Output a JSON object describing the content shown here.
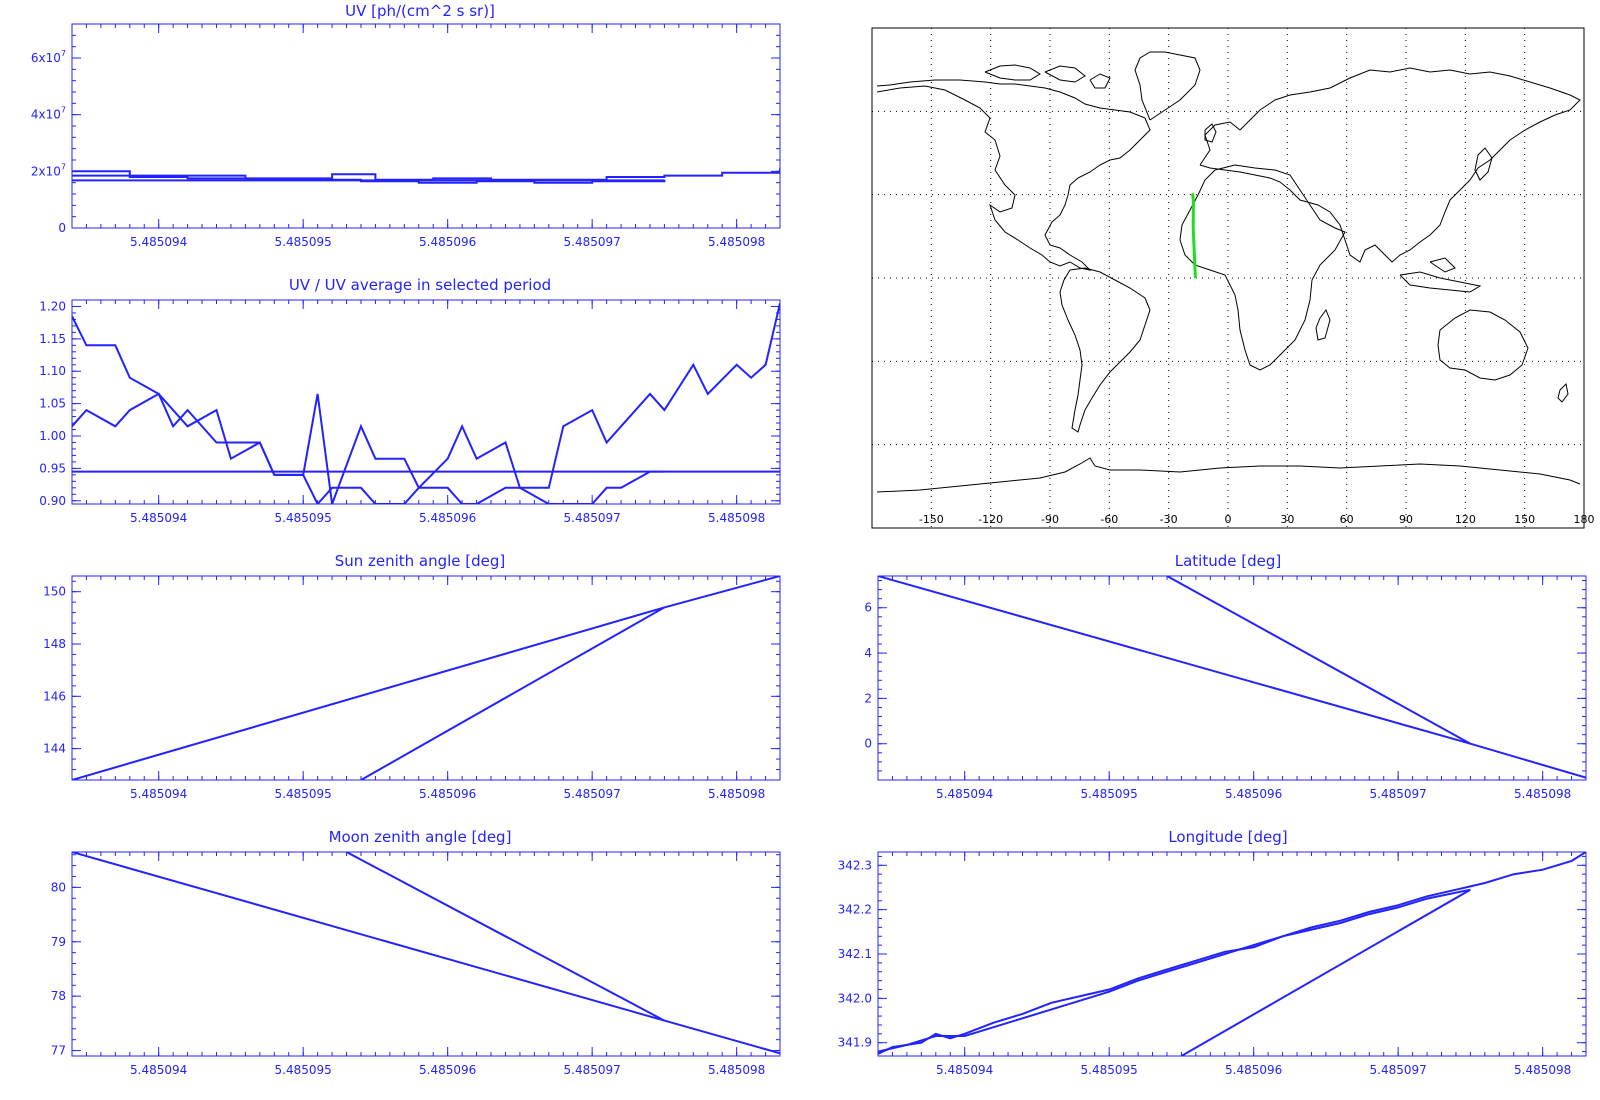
{
  "colors": {
    "plot": "#2323ff",
    "map_line": "#000000",
    "map_track": "#22dd22",
    "background": "#ffffff"
  },
  "chart_data": [
    {
      "id": "uv",
      "type": "line",
      "title": "UV [ph/(cm^2 s sr)]",
      "xlim": [
        5.4850934,
        5.4850983
      ],
      "ylim": [
        0,
        72000000
      ],
      "x_ticks": [
        "5.485094",
        "5.485095",
        "5.485096",
        "5.485097",
        "5.485098"
      ],
      "x_tick_values": [
        5.485094,
        5.485095,
        5.485096,
        5.485097,
        5.485098
      ],
      "y_tick_labels": [
        "0",
        "2x10^7",
        "4x10^7",
        "6x10^7"
      ],
      "y_tick_values": [
        0,
        20000000,
        40000000,
        60000000
      ],
      "series": [
        {
          "step": true,
          "x": [
            5.4850934,
            5.4850938,
            5.4850942,
            5.4850946,
            5.485095,
            5.4850952,
            5.4850955,
            5.4850959,
            5.4850963,
            5.4850967,
            5.4850971,
            5.4850975,
            5.4850979,
            5.4850983
          ],
          "y": [
            20000000,
            18500000,
            18500000,
            17500000,
            17500000,
            19000000,
            17000000,
            17500000,
            17000000,
            17000000,
            18000000,
            18500000,
            19500000,
            21000000
          ]
        },
        {
          "step": true,
          "x": [
            5.4850934,
            5.4850938,
            5.4850942,
            5.4850946,
            5.485095,
            5.4850954,
            5.4850958,
            5.4850962,
            5.4850966,
            5.485097,
            5.4850975
          ],
          "y": [
            18500000,
            18000000,
            17500000,
            17000000,
            17000000,
            16500000,
            16000000,
            16500000,
            16000000,
            16500000,
            17000000
          ]
        },
        {
          "step": false,
          "x": [
            5.4850934,
            5.4850975
          ],
          "y": [
            16800000,
            16800000
          ]
        }
      ]
    },
    {
      "id": "uv_ratio",
      "type": "line",
      "title": "UV / UV average in selected period",
      "xlim": [
        5.4850934,
        5.4850983
      ],
      "ylim": [
        0.895,
        1.21
      ],
      "x_ticks": [
        "5.485094",
        "5.485095",
        "5.485096",
        "5.485097",
        "5.485098"
      ],
      "x_tick_values": [
        5.485094,
        5.485095,
        5.485096,
        5.485097,
        5.485098
      ],
      "y_tick_labels": [
        "0.90",
        "0.95",
        "1.00",
        "1.05",
        "1.10",
        "1.15",
        "1.20"
      ],
      "y_tick_values": [
        0.9,
        0.95,
        1.0,
        1.05,
        1.1,
        1.15,
        1.2
      ],
      "series": [
        {
          "step": false,
          "x": [
            5.4850934,
            5.4850935,
            5.4850937,
            5.4850938,
            5.485094,
            5.4850941,
            5.4850942,
            5.4850944,
            5.4850945,
            5.4850947,
            5.4850948,
            5.485095,
            5.4850951,
            5.4850952,
            5.4850954,
            5.4850955,
            5.4850957,
            5.4850958,
            5.485096,
            5.4850961,
            5.4850962,
            5.4850964,
            5.4850965,
            5.4850967,
            5.4850968,
            5.485097,
            5.4850971,
            5.4850972,
            5.4850974,
            5.4850975,
            5.4850977,
            5.4850978,
            5.485098,
            5.4850981,
            5.4850982,
            5.4850983
          ],
          "y": [
            1.015,
            1.04,
            1.015,
            1.04,
            1.065,
            1.015,
            1.04,
            0.99,
            0.99,
            0.99,
            0.94,
            0.94,
            0.895,
            0.92,
            0.92,
            0.895,
            0.895,
            0.92,
            0.92,
            0.895,
            0.895,
            0.92,
            0.92,
            0.895,
            0.895,
            0.895,
            0.92,
            0.92,
            0.945,
            0.945,
            0.945,
            0.945,
            0.945,
            0.945,
            0.945,
            0.945
          ]
        },
        {
          "step": false,
          "x": [
            5.4850934,
            5.4850935,
            5.4850937,
            5.4850938,
            5.485094,
            5.4850941,
            5.4850942,
            5.4850944,
            5.4850945,
            5.4850947,
            5.4850948,
            5.485095,
            5.4850951,
            5.4850952,
            5.4850954,
            5.4850955,
            5.4850957,
            5.4850958,
            5.485096,
            5.4850961,
            5.4850962,
            5.4850964,
            5.4850965,
            5.4850967,
            5.4850968,
            5.485097,
            5.4850971,
            5.4850972,
            5.4850974,
            5.4850975,
            5.4850977,
            5.4850978,
            5.485098,
            5.4850981,
            5.4850982,
            5.4850983
          ],
          "y": [
            1.185,
            1.14,
            1.14,
            1.09,
            1.065,
            1.04,
            1.015,
            1.04,
            0.965,
            0.99,
            0.94,
            0.94,
            1.065,
            0.895,
            1.015,
            0.965,
            0.965,
            0.92,
            0.965,
            1.015,
            0.965,
            0.99,
            0.92,
            0.92,
            1.015,
            1.04,
            0.99,
            1.015,
            1.065,
            1.04,
            1.11,
            1.065,
            1.11,
            1.09,
            1.11,
            1.205
          ]
        },
        {
          "step": false,
          "x": [
            5.4850934,
            5.4850975
          ],
          "y": [
            0.945,
            0.945
          ]
        }
      ]
    },
    {
      "id": "sun_zenith",
      "type": "line",
      "title": "Sun zenith angle [deg]",
      "xlim": [
        5.4850934,
        5.4850983
      ],
      "ylim": [
        142.8,
        150.6
      ],
      "x_ticks": [
        "5.485094",
        "5.485095",
        "5.485096",
        "5.485097",
        "5.485098"
      ],
      "x_tick_values": [
        5.485094,
        5.485095,
        5.485096,
        5.485097,
        5.485098
      ],
      "y_tick_labels": [
        "144",
        "146",
        "148",
        "150"
      ],
      "y_tick_values": [
        144,
        146,
        148,
        150
      ],
      "series": [
        {
          "step": false,
          "x": [
            5.4850934,
            5.4850975,
            5.4850983
          ],
          "y": [
            142.8,
            149.4,
            150.6
          ]
        },
        {
          "step": false,
          "x": [
            5.4850954,
            5.4850975
          ],
          "y": [
            142.8,
            149.4
          ]
        }
      ]
    },
    {
      "id": "latitude",
      "type": "line",
      "title": "Latitude [deg]",
      "xlim": [
        5.4850934,
        5.4850983
      ],
      "ylim": [
        -1.6,
        7.4
      ],
      "x_ticks": [
        "5.485094",
        "5.485095",
        "5.485096",
        "5.485097",
        "5.485098"
      ],
      "x_tick_values": [
        5.485094,
        5.485095,
        5.485096,
        5.485097,
        5.485098
      ],
      "y_tick_labels": [
        "0",
        "2",
        "4",
        "6"
      ],
      "y_tick_values": [
        0,
        2,
        4,
        6
      ],
      "series": [
        {
          "step": false,
          "x": [
            5.4850934,
            5.4850975,
            5.4850983
          ],
          "y": [
            7.4,
            0.0,
            -1.5
          ]
        },
        {
          "step": false,
          "x": [
            5.4850954,
            5.4850975
          ],
          "y": [
            7.4,
            0.0
          ]
        }
      ]
    },
    {
      "id": "moon_zenith",
      "type": "line",
      "title": "Moon zenith angle [deg]",
      "xlim": [
        5.4850934,
        5.4850983
      ],
      "ylim": [
        76.9,
        80.65
      ],
      "x_ticks": [
        "5.485094",
        "5.485095",
        "5.485096",
        "5.485097",
        "5.485098"
      ],
      "x_tick_values": [
        5.485094,
        5.485095,
        5.485096,
        5.485097,
        5.485098
      ],
      "y_tick_labels": [
        "77",
        "78",
        "79",
        "80"
      ],
      "y_tick_values": [
        77,
        78,
        79,
        80
      ],
      "series": [
        {
          "step": false,
          "x": [
            5.4850934,
            5.4850975,
            5.4850983
          ],
          "y": [
            80.65,
            77.55,
            76.95
          ]
        },
        {
          "step": false,
          "x": [
            5.4850953,
            5.4850975
          ],
          "y": [
            80.65,
            77.55
          ]
        }
      ]
    },
    {
      "id": "longitude",
      "type": "line",
      "title": "Longitude [deg]",
      "xlim": [
        5.4850934,
        5.4850983
      ],
      "ylim": [
        341.87,
        342.33
      ],
      "x_ticks": [
        "5.485094",
        "5.485095",
        "5.485096",
        "5.485097",
        "5.485098"
      ],
      "x_tick_values": [
        5.485094,
        5.485095,
        5.485096,
        5.485097,
        5.485098
      ],
      "y_tick_labels": [
        "341.9",
        "342.0",
        "342.1",
        "342.2",
        "342.3"
      ],
      "y_tick_values": [
        341.9,
        342.0,
        342.1,
        342.2,
        342.3
      ],
      "series": [
        {
          "step": false,
          "x": [
            5.4850934,
            5.4850935,
            5.4850937,
            5.4850938,
            5.4850939,
            5.485094,
            5.4850942,
            5.4850944,
            5.4850946,
            5.4850948,
            5.485095,
            5.4850952,
            5.4850954,
            5.4850956,
            5.4850958,
            5.485096,
            5.4850962,
            5.4850964,
            5.4850966,
            5.4850968,
            5.485097,
            5.4850972,
            5.4850974,
            5.4850976,
            5.4850978,
            5.485098,
            5.4850982,
            5.4850983
          ],
          "y": [
            341.875,
            341.89,
            341.9,
            341.92,
            341.91,
            341.92,
            341.945,
            341.965,
            341.99,
            342.005,
            342.02,
            342.045,
            342.065,
            342.085,
            342.105,
            342.115,
            342.14,
            342.16,
            342.175,
            342.195,
            342.21,
            342.23,
            342.245,
            342.26,
            342.28,
            342.29,
            342.31,
            342.33
          ]
        },
        {
          "step": false,
          "x": [
            5.4850934,
            5.4850936,
            5.4850938,
            5.485094,
            5.4850942,
            5.4850944,
            5.4850946,
            5.4850948,
            5.485095,
            5.4850952,
            5.4850954,
            5.4850956,
            5.4850958,
            5.485096,
            5.4850962,
            5.4850964,
            5.4850966,
            5.4850968,
            5.485097,
            5.4850972,
            5.4850975
          ],
          "y": [
            341.88,
            341.895,
            341.915,
            341.915,
            341.935,
            341.955,
            341.975,
            341.995,
            342.015,
            342.04,
            342.06,
            342.08,
            342.1,
            342.12,
            342.14,
            342.155,
            342.17,
            342.19,
            342.205,
            342.225,
            342.245
          ]
        },
        {
          "step": false,
          "x": [
            5.4850955,
            5.4850975
          ],
          "y": [
            341.87,
            342.245
          ]
        }
      ]
    }
  ],
  "map": {
    "x_ticks": [
      "-150",
      "-120",
      "-90",
      "-60",
      "-30",
      "0",
      "30",
      "60",
      "90",
      "120",
      "150",
      "180"
    ],
    "x_tick_values": [
      -150,
      -120,
      -90,
      -60,
      -30,
      0,
      30,
      60,
      90,
      120,
      150,
      180
    ],
    "lon_range": [
      -180,
      180
    ],
    "lat_range": [
      -90,
      90
    ],
    "track": [
      {
        "lon": -17.9,
        "lat": 30.5
      },
      {
        "lon": -17.5,
        "lat": 27.5
      },
      {
        "lon": -17.6,
        "lat": 18.0
      },
      {
        "lon": -16.5,
        "lat": 0.0
      }
    ]
  }
}
